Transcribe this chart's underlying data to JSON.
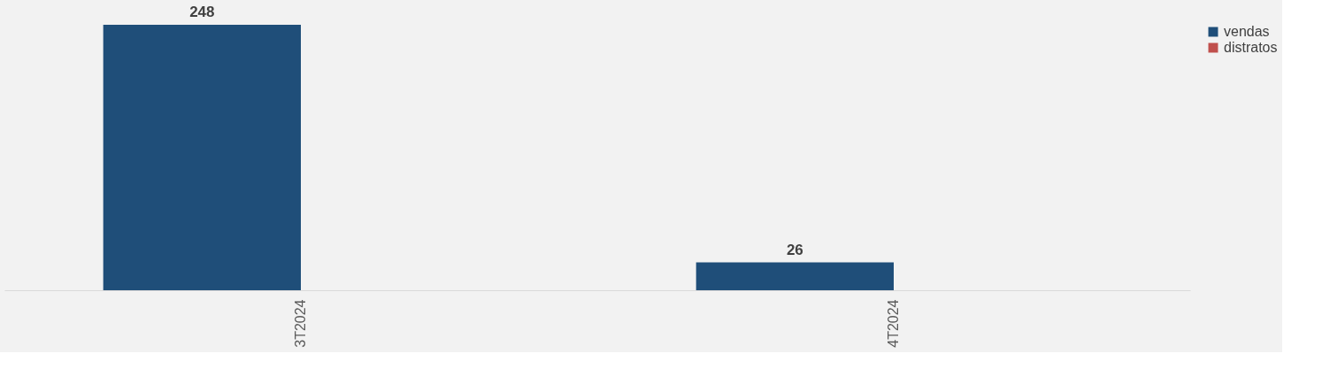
{
  "chart_data": {
    "type": "bar",
    "categories": [
      "3T2024",
      "4T2024"
    ],
    "series": [
      {
        "name": "vendas",
        "color": "#1f4e79",
        "values": [
          248,
          26
        ]
      },
      {
        "name": "distratos",
        "color": "#c0504d",
        "values": [
          null,
          null
        ]
      }
    ],
    "data_labels": true,
    "legend": "right",
    "grid": false
  }
}
